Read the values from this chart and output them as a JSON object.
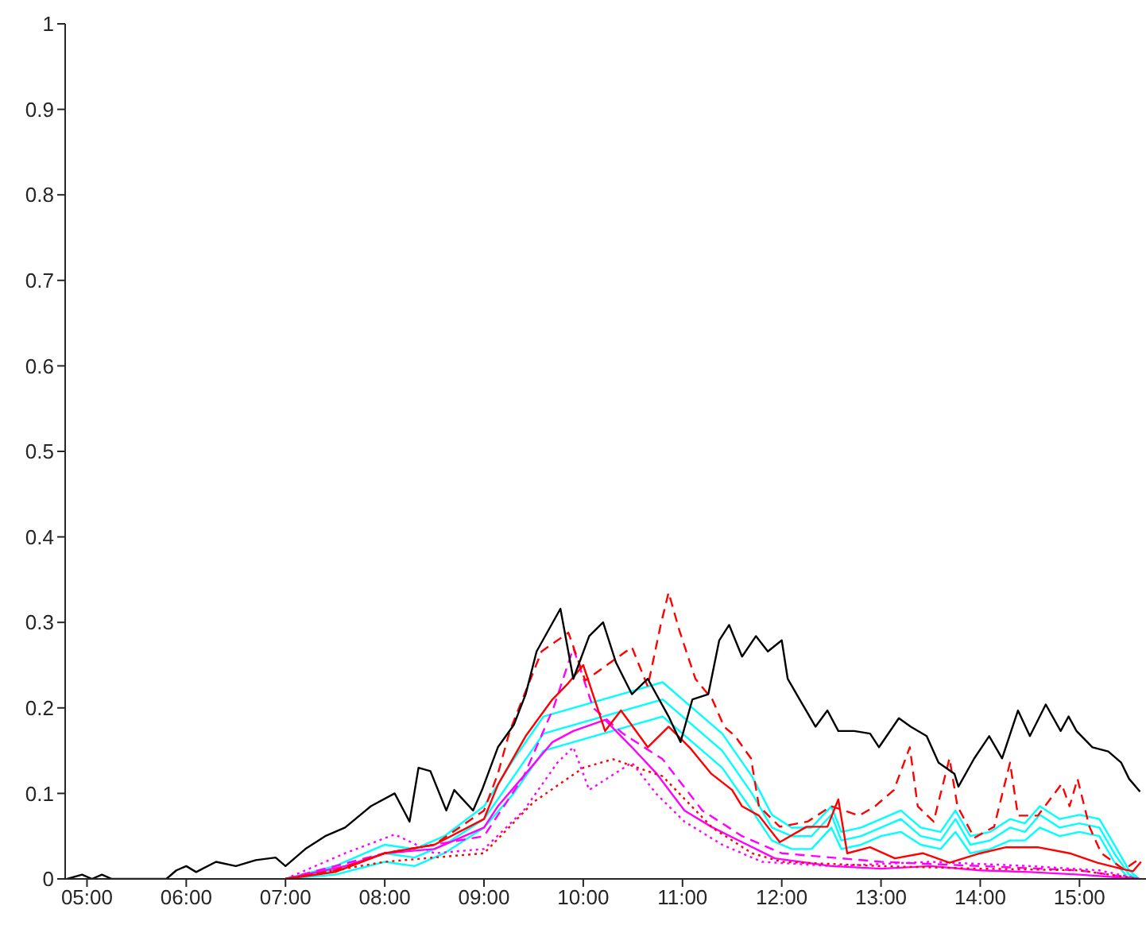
{
  "chart_data": {
    "type": "line",
    "xlim": [
      4.78,
      15.67
    ],
    "xticks": [
      {
        "value": 5,
        "label": "05:00"
      },
      {
        "value": 6,
        "label": "06:00"
      },
      {
        "value": 7,
        "label": "07:00"
      },
      {
        "value": 8,
        "label": "08:00"
      },
      {
        "value": 9,
        "label": "09:00"
      },
      {
        "value": 10,
        "label": "10:00"
      },
      {
        "value": 11,
        "label": "11:00"
      },
      {
        "value": 12,
        "label": "12:00"
      },
      {
        "value": 13,
        "label": "13:00"
      },
      {
        "value": 14,
        "label": "14:00"
      },
      {
        "value": 15,
        "label": "15:00"
      }
    ],
    "ylim": [
      0,
      1
    ],
    "yticks": [
      0,
      0.1,
      0.2,
      0.3,
      0.4,
      0.5,
      0.6,
      0.7,
      0.8,
      0.9,
      1
    ],
    "grid": false,
    "marker": "none",
    "series": [
      {
        "color": "#00ffff",
        "line_style": "solid",
        "x": [
          7.0,
          7.5,
          8.0,
          8.3,
          8.6,
          9.0,
          9.3,
          9.6,
          9.9,
          10.2,
          10.5,
          10.8,
          11.1,
          11.4,
          11.7,
          11.9,
          12.1,
          12.3,
          12.5,
          12.6,
          12.8,
          13.0,
          13.2,
          13.4,
          13.6,
          13.75,
          13.9,
          14.1,
          14.3,
          14.45,
          14.6,
          14.8,
          15.0,
          15.2,
          15.35,
          15.5,
          15.6
        ],
        "values": [
          0,
          0.015,
          0.04,
          0.035,
          0.05,
          0.085,
          0.14,
          0.19,
          0.2,
          0.21,
          0.22,
          0.23,
          0.2,
          0.17,
          0.12,
          0.075,
          0.06,
          0.06,
          0.085,
          0.055,
          0.06,
          0.07,
          0.08,
          0.06,
          0.055,
          0.08,
          0.05,
          0.055,
          0.07,
          0.065,
          0.085,
          0.07,
          0.075,
          0.07,
          0.04,
          0.01,
          0
        ]
      },
      {
        "color": "#00ffff",
        "line_style": "solid",
        "x": [
          7.0,
          7.5,
          8.0,
          8.3,
          8.6,
          9.0,
          9.3,
          9.6,
          9.9,
          10.2,
          10.5,
          10.8,
          11.1,
          11.4,
          11.7,
          11.9,
          12.1,
          12.3,
          12.5,
          12.6,
          12.8,
          13.0,
          13.2,
          13.4,
          13.6,
          13.75,
          13.9,
          14.1,
          14.3,
          14.45,
          14.6,
          14.8,
          15.0,
          15.2,
          15.35,
          15.5,
          15.6
        ],
        "values": [
          0,
          0.01,
          0.03,
          0.025,
          0.04,
          0.07,
          0.12,
          0.17,
          0.18,
          0.19,
          0.2,
          0.21,
          0.18,
          0.15,
          0.1,
          0.06,
          0.05,
          0.05,
          0.075,
          0.045,
          0.05,
          0.06,
          0.07,
          0.05,
          0.045,
          0.07,
          0.04,
          0.045,
          0.06,
          0.055,
          0.075,
          0.06,
          0.065,
          0.06,
          0.03,
          0.005,
          0
        ]
      },
      {
        "color": "#00ffff",
        "line_style": "solid",
        "x": [
          7.0,
          7.5,
          8.0,
          8.3,
          8.6,
          9.0,
          9.3,
          9.6,
          9.9,
          10.2,
          10.5,
          10.8,
          11.1,
          11.4,
          11.7,
          11.9,
          12.1,
          12.3,
          12.5,
          12.6,
          12.8,
          13.0,
          13.2,
          13.4,
          13.6,
          13.75,
          13.9,
          14.1,
          14.3,
          14.45,
          14.6,
          14.8,
          15.0,
          15.2,
          15.35,
          15.5,
          15.6
        ],
        "values": [
          0,
          0.005,
          0.02,
          0.015,
          0.03,
          0.06,
          0.1,
          0.15,
          0.16,
          0.17,
          0.18,
          0.19,
          0.16,
          0.13,
          0.08,
          0.045,
          0.035,
          0.035,
          0.06,
          0.035,
          0.04,
          0.05,
          0.055,
          0.04,
          0.035,
          0.055,
          0.03,
          0.035,
          0.045,
          0.045,
          0.06,
          0.05,
          0.055,
          0.05,
          0.02,
          0,
          0
        ]
      },
      {
        "color": "#ff00ff",
        "line_style": "solid",
        "x": [
          7.0,
          7.6,
          8.0,
          8.5,
          9.0,
          9.14,
          9.42,
          9.69,
          9.9,
          10.22,
          10.49,
          10.74,
          11.02,
          11.29,
          11.6,
          11.93,
          12.5,
          13.0,
          13.5,
          14.0,
          14.5,
          15.0,
          15.6
        ],
        "values": [
          0,
          0.015,
          0.03,
          0.035,
          0.06,
          0.085,
          0.123,
          0.16,
          0.173,
          0.186,
          0.154,
          0.123,
          0.08,
          0.061,
          0.043,
          0.024,
          0.015,
          0.012,
          0.015,
          0.01,
          0.008,
          0.005,
          0
        ]
      },
      {
        "color": "#ff00ff",
        "line_style": "dotted",
        "x": [
          7.0,
          7.6,
          8.1,
          8.5,
          9.0,
          9.4,
          9.74,
          9.9,
          10.06,
          10.49,
          10.74,
          11.02,
          11.4,
          11.8,
          12.5,
          13.5,
          14.5,
          15.2,
          15.6
        ],
        "values": [
          0,
          0.03,
          0.052,
          0.03,
          0.035,
          0.08,
          0.136,
          0.154,
          0.104,
          0.136,
          0.099,
          0.067,
          0.04,
          0.02,
          0.015,
          0.02,
          0.015,
          0.01,
          0
        ]
      },
      {
        "color": "#ff00ff",
        "line_style": "dashed",
        "x": [
          7.0,
          8.0,
          9.0,
          9.4,
          9.7,
          9.9,
          10.1,
          10.4,
          10.8,
          11.2,
          11.6,
          12.0,
          13.0,
          14.0,
          15.0,
          15.6
        ],
        "values": [
          0,
          0.03,
          0.05,
          0.12,
          0.2,
          0.27,
          0.2,
          0.17,
          0.14,
          0.08,
          0.05,
          0.03,
          0.02,
          0.015,
          0.01,
          0
        ]
      },
      {
        "color": "#ff0000",
        "line_style": "dotted",
        "x": [
          7.0,
          8.0,
          9.0,
          9.5,
          10.0,
          10.3,
          10.8,
          11.3,
          11.7,
          12.0,
          13.0,
          14.0,
          15.0,
          15.6
        ],
        "values": [
          0,
          0.02,
          0.03,
          0.09,
          0.13,
          0.14,
          0.12,
          0.06,
          0.03,
          0.02,
          0.015,
          0.012,
          0.01,
          0
        ]
      },
      {
        "color": "#ff0000",
        "line_style": "solid",
        "x": [
          7.0,
          7.5,
          8.0,
          8.5,
          9.0,
          9.14,
          9.42,
          9.69,
          9.85,
          10.0,
          10.22,
          10.38,
          10.65,
          10.86,
          11.07,
          11.29,
          11.5,
          11.6,
          11.77,
          11.98,
          12.25,
          12.46,
          12.57,
          12.66,
          12.89,
          13.14,
          13.42,
          13.69,
          14.0,
          14.26,
          14.58,
          14.9,
          15.18,
          15.45,
          15.54,
          15.62
        ],
        "values": [
          0,
          0.008,
          0.03,
          0.04,
          0.07,
          0.11,
          0.167,
          0.21,
          0.229,
          0.25,
          0.173,
          0.197,
          0.154,
          0.178,
          0.154,
          0.123,
          0.104,
          0.085,
          0.074,
          0.043,
          0.061,
          0.061,
          0.093,
          0.03,
          0.037,
          0.024,
          0.03,
          0.019,
          0.03,
          0.037,
          0.037,
          0.03,
          0.019,
          0.011,
          0.009,
          0.02
        ]
      },
      {
        "color": "#ff0000",
        "line_style": "dashed",
        "x": [
          7.0,
          7.5,
          8.0,
          8.5,
          9.0,
          9.14,
          9.26,
          9.58,
          9.85,
          10.02,
          10.49,
          10.65,
          10.78,
          10.86,
          10.97,
          11.13,
          11.3,
          11.42,
          11.53,
          11.69,
          11.77,
          11.98,
          12.26,
          12.5,
          12.78,
          12.94,
          13.13,
          13.29,
          13.37,
          13.53,
          13.69,
          13.77,
          13.94,
          14.14,
          14.3,
          14.38,
          14.58,
          14.82,
          14.9,
          14.98,
          15.1,
          15.22,
          15.45,
          15.61
        ],
        "values": [
          0,
          0.01,
          0.03,
          0.04,
          0.08,
          0.123,
          0.173,
          0.266,
          0.288,
          0.232,
          0.271,
          0.225,
          0.297,
          0.335,
          0.29,
          0.234,
          0.21,
          0.178,
          0.167,
          0.141,
          0.085,
          0.061,
          0.067,
          0.085,
          0.074,
          0.085,
          0.104,
          0.154,
          0.085,
          0.067,
          0.141,
          0.085,
          0.048,
          0.061,
          0.136,
          0.074,
          0.074,
          0.111,
          0.085,
          0.117,
          0.061,
          0.03,
          0.011,
          0.024
        ]
      },
      {
        "color": "#000000",
        "line_style": "solid",
        "x": [
          4.8,
          4.95,
          5.05,
          5.15,
          5.25,
          5.8,
          5.9,
          6.0,
          6.1,
          6.3,
          6.5,
          6.7,
          6.9,
          7.0,
          7.2,
          7.4,
          7.6,
          7.86,
          8.1,
          8.25,
          8.34,
          8.46,
          8.62,
          8.7,
          8.89,
          8.98,
          9.14,
          9.3,
          9.42,
          9.53,
          9.77,
          9.9,
          10.06,
          10.2,
          10.33,
          10.49,
          10.65,
          10.86,
          10.98,
          11.1,
          11.26,
          11.37,
          11.47,
          11.6,
          11.74,
          11.86,
          12.0,
          12.06,
          12.18,
          12.34,
          12.46,
          12.57,
          12.73,
          12.89,
          12.98,
          13.18,
          13.3,
          13.46,
          13.58,
          13.74,
          13.78,
          13.94,
          14.09,
          14.22,
          14.38,
          14.5,
          14.66,
          14.81,
          14.89,
          14.97,
          15.13,
          15.29,
          15.42,
          15.5,
          15.61
        ],
        "values": [
          0,
          0.005,
          0,
          0.005,
          0,
          0,
          0.01,
          0.015,
          0.008,
          0.02,
          0.015,
          0.022,
          0.025,
          0.015,
          0.035,
          0.05,
          0.06,
          0.085,
          0.1,
          0.067,
          0.13,
          0.126,
          0.08,
          0.104,
          0.08,
          0.104,
          0.154,
          0.18,
          0.216,
          0.266,
          0.316,
          0.234,
          0.284,
          0.3,
          0.253,
          0.216,
          0.234,
          0.19,
          0.16,
          0.21,
          0.216,
          0.279,
          0.297,
          0.26,
          0.284,
          0.266,
          0.279,
          0.234,
          0.21,
          0.178,
          0.197,
          0.173,
          0.173,
          0.17,
          0.154,
          0.188,
          0.178,
          0.167,
          0.136,
          0.123,
          0.108,
          0.141,
          0.167,
          0.141,
          0.197,
          0.167,
          0.204,
          0.173,
          0.19,
          0.173,
          0.154,
          0.149,
          0.136,
          0.117,
          0.102
        ]
      }
    ]
  }
}
